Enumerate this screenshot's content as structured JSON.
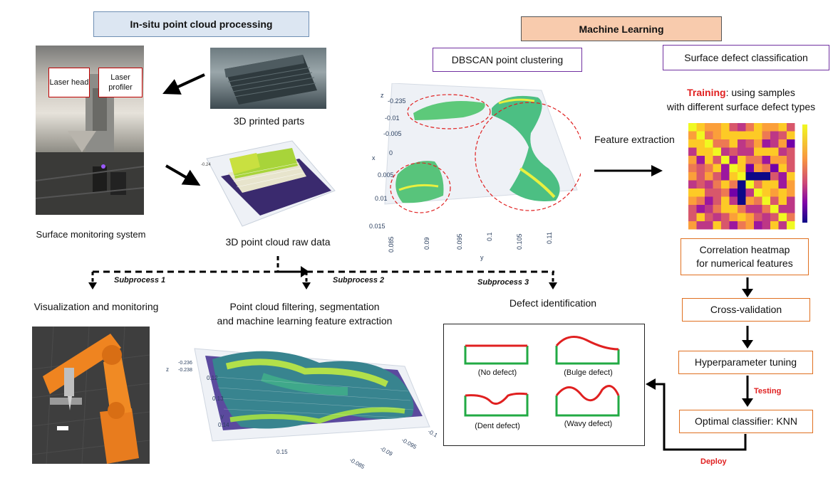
{
  "headers": {
    "left": "In-situ point cloud processing",
    "right": "Machine Learning"
  },
  "photo_labels": {
    "laser_head": "Laser head",
    "laser_profiler": "Laser profiler"
  },
  "captions": {
    "printed_parts": "3D printed parts",
    "surface_monitoring": "Surface monitoring system",
    "raw_data": "3D point cloud raw data",
    "visualization": "Visualization and monitoring",
    "filtering_line1": "Point cloud filtering, segmentation",
    "filtering_line2": "and machine learning feature extraction",
    "defect_identification": "Defect identification",
    "feature_extraction": "Feature extraction"
  },
  "subprocess": {
    "s1": "Subprocess 1",
    "s2": "Subprocess 2",
    "s3": "Subprocess 3"
  },
  "ml_boxes": {
    "dbscan": "DBSCAN point clustering",
    "classification": "Surface defect classification",
    "training_key": "Training",
    "training_rest": ": using samples",
    "training_line2": "with different surface defect types",
    "correlation_line1": "Correlation heatmap",
    "correlation_line2": "for numerical features",
    "cross_validation": "Cross-validation",
    "hyperparameter": "Hyperparameter tuning",
    "optimal": "Optimal classifier: KNN",
    "testing": "Testing",
    "deploy": "Deploy"
  },
  "defects": {
    "none": "(No defect)",
    "bulge": "(Bulge defect)",
    "dent": "(Dent defect)",
    "wavy": "(Wavy defect)"
  },
  "dbscan_plot": {
    "axis_z": "z",
    "axis_x": "x",
    "axis_y": "y",
    "z_ticks": [
      "-0.235",
      "-0.01",
      "-0.005",
      "0",
      "0.005",
      "0.01",
      "0.015"
    ],
    "y_ticks": [
      "0.085",
      "0.09",
      "0.095",
      "0.1",
      "0.105",
      "0.11"
    ]
  },
  "raw_plot": {
    "z_tick": "-0.24"
  },
  "filter_plot": {
    "axis_z": "z",
    "axis_y": "y",
    "z_ticks": [
      "-0.236",
      "-0.238"
    ],
    "y_ticks": [
      "0.12",
      "0.13",
      "0.14",
      "0.15"
    ],
    "x_ticks": [
      "-0.1",
      "-0.095",
      "-0.09",
      "-0.085"
    ]
  },
  "colors": {
    "accent_orange": "#e07020",
    "purple": "#7030a0",
    "red": "#e02020",
    "defect_green": "#22aa44",
    "defect_red": "#e02020"
  }
}
